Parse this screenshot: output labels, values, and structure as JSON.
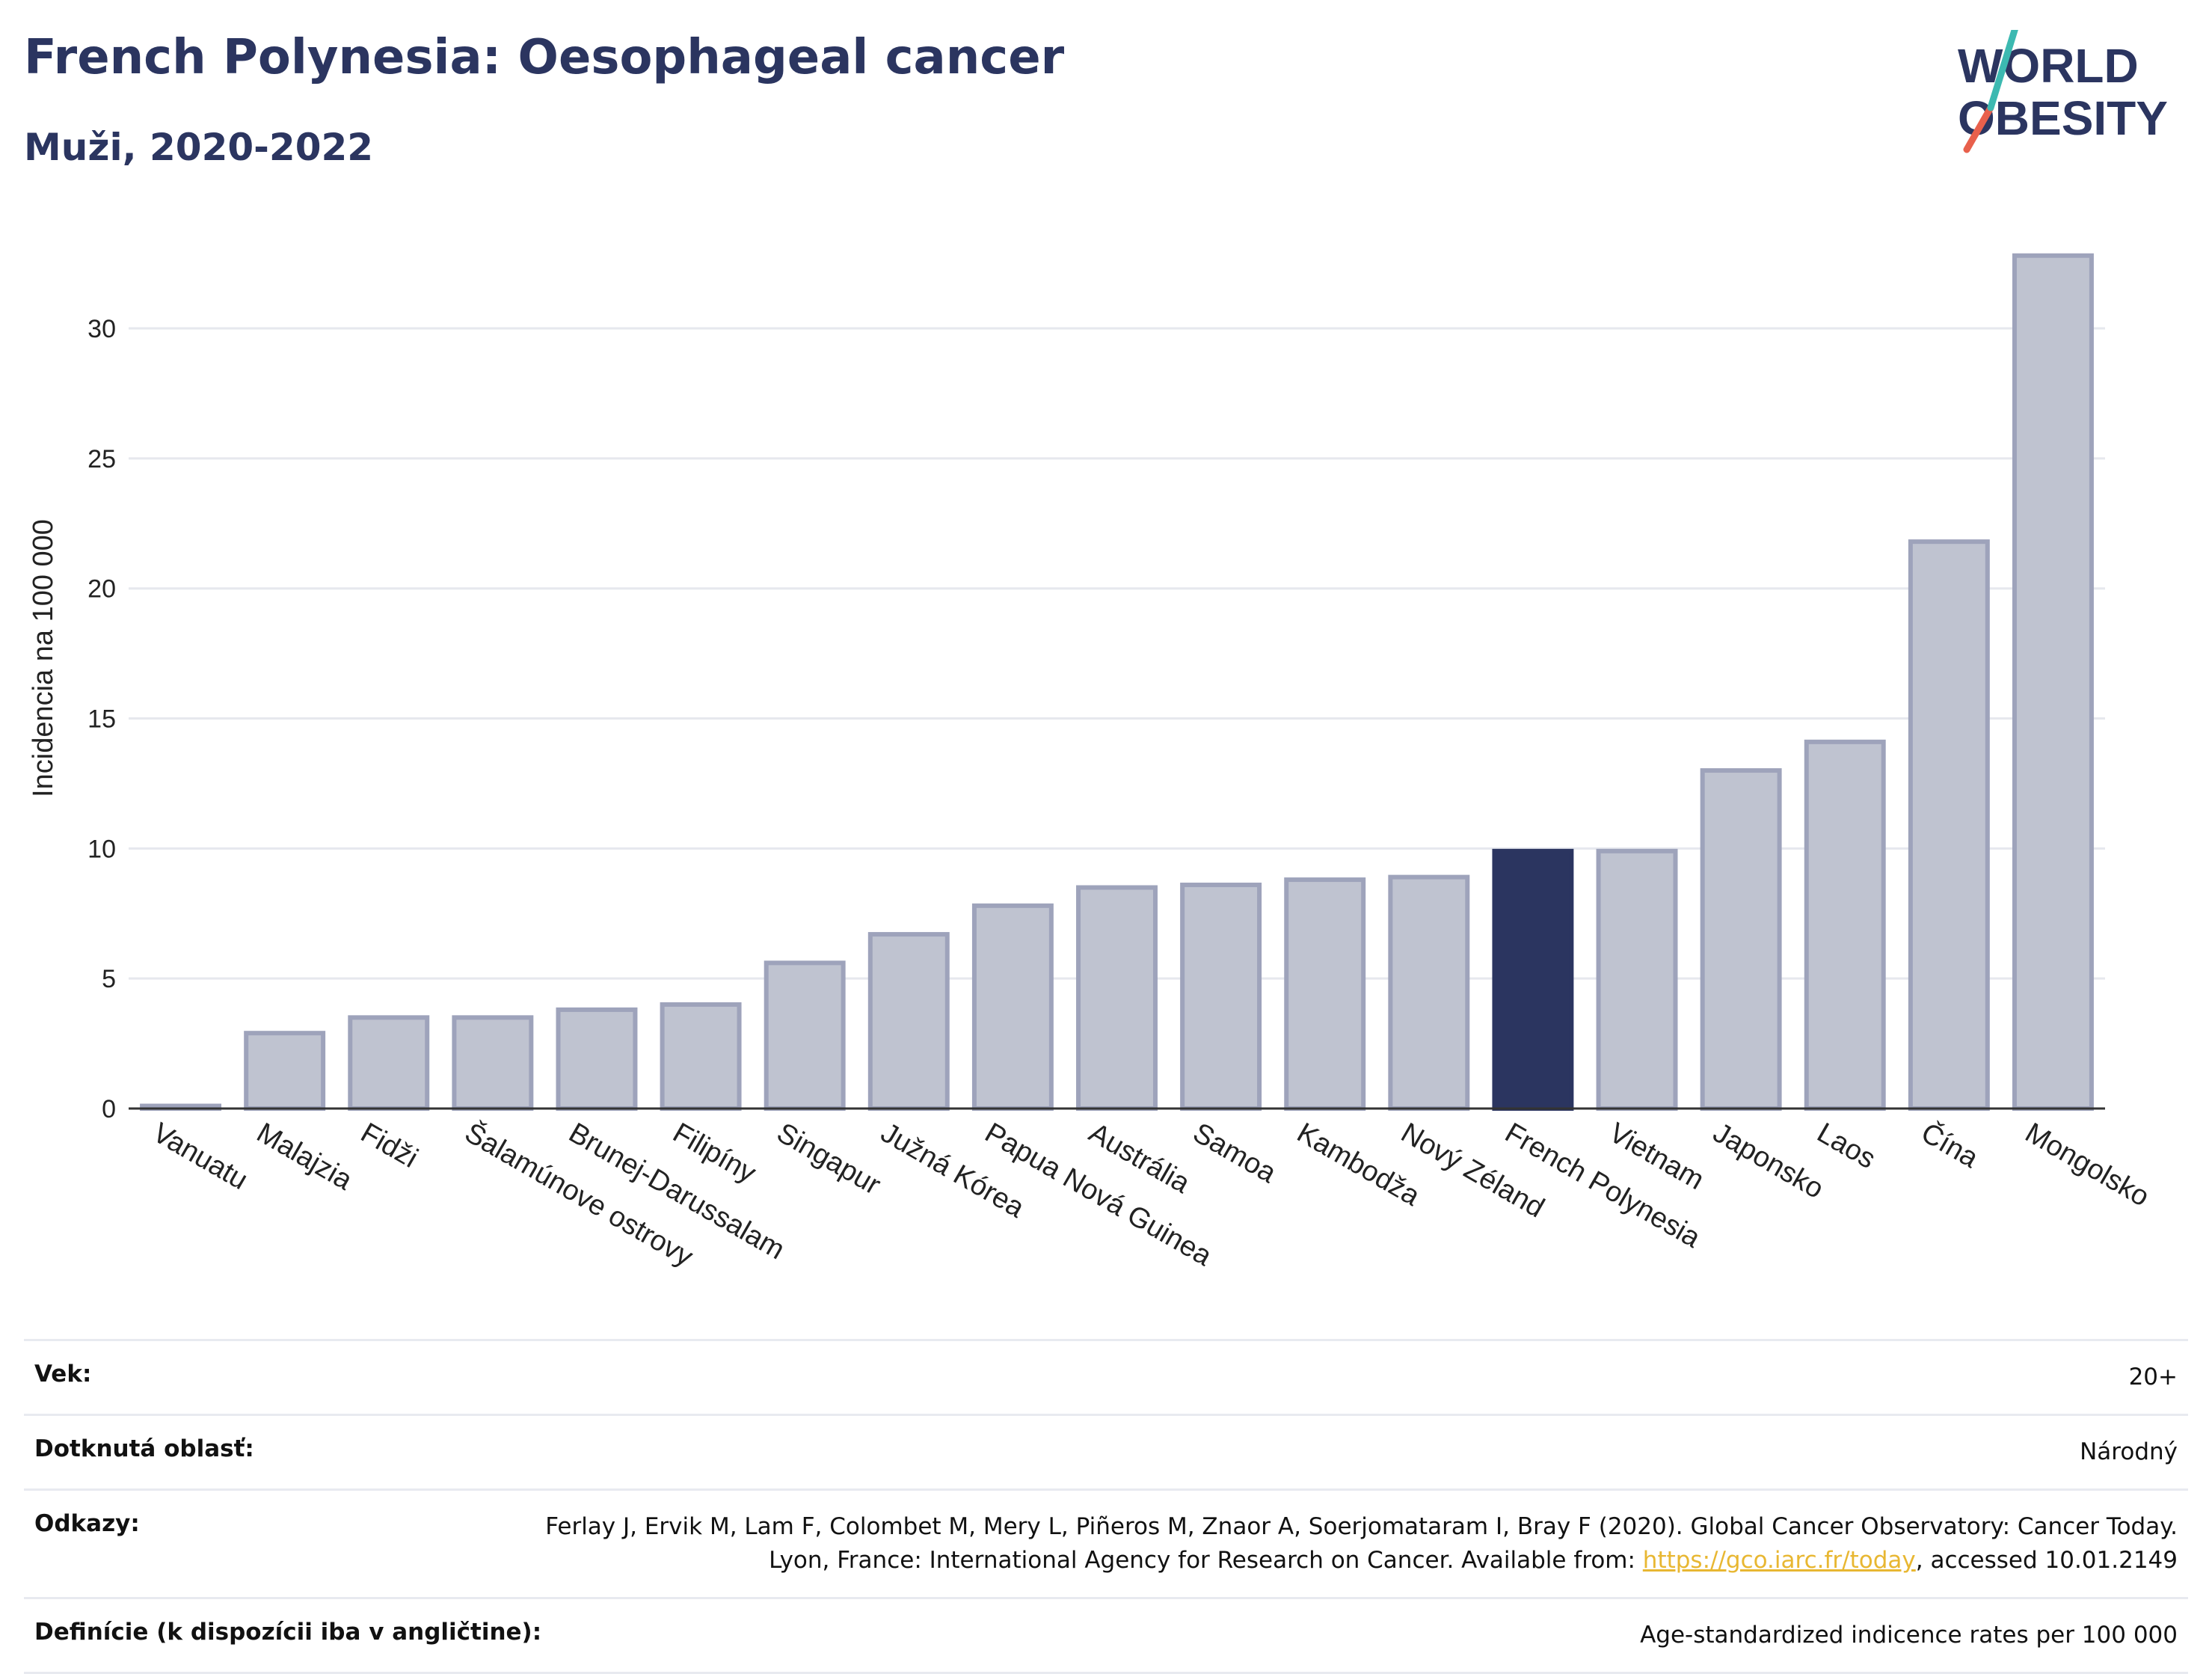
{
  "header": {
    "title": "French Polynesia: Oesophageal cancer",
    "subtitle": "Muži, 2020-2022"
  },
  "logo": {
    "line1": "WORLD",
    "line2": "OBESITY"
  },
  "chart_data": {
    "type": "bar",
    "title": "French Polynesia: Oesophageal cancer",
    "subtitle": "Muži, 2020-2022",
    "ylabel": "Incidencia na 100 000",
    "xlabel": "",
    "ylim": [
      0,
      34
    ],
    "yticks": [
      0,
      5,
      10,
      15,
      20,
      25,
      30
    ],
    "grid": true,
    "categories": [
      "Vanuatu",
      "Malajzia",
      "Fidži",
      "Šalamúnove ostrovy",
      "Brunej-Darussalam",
      "Filipíny",
      "Singapur",
      "Južná Kórea",
      "Papua Nová Guinea",
      "Austrália",
      "Samoa",
      "Kambodža",
      "Nový Zéland",
      "French Polynesia",
      "Vietnam",
      "Japonsko",
      "Laos",
      "Čína",
      "Mongolsko"
    ],
    "values": [
      0.1,
      2.9,
      3.5,
      3.5,
      3.8,
      4.0,
      5.6,
      6.7,
      7.8,
      8.5,
      8.6,
      8.8,
      8.9,
      9.9,
      9.9,
      13.0,
      14.1,
      21.8,
      32.8
    ],
    "highlight": "French Polynesia",
    "colors": {
      "bar": "#bfc3d0",
      "bar_border": "#9ea3bb",
      "highlight": "#2b3560",
      "grid": "#e6e8ee",
      "axis": "#333333"
    }
  },
  "meta": [
    {
      "label": "Vek:",
      "value": "20+"
    },
    {
      "label": "Dotknutá oblasť:",
      "value": "Národný"
    },
    {
      "label": "Odkazy:",
      "value_before": "Ferlay J, Ervik M, Lam F, Colombet M, Mery L, Piñeros M, Znaor A, Soerjomataram I, Bray F (2020). Global Cancer Observatory: Cancer Today. Lyon, France: International Agency for Research on Cancer. Available from: ",
      "link": "https://gco.iarc.fr/today",
      "value_after": ", accessed 10.01.2149"
    },
    {
      "label": "Definície (k dispozícii iba v angličtine):",
      "value": "Age-standardized indicence rates per 100 000"
    }
  ]
}
